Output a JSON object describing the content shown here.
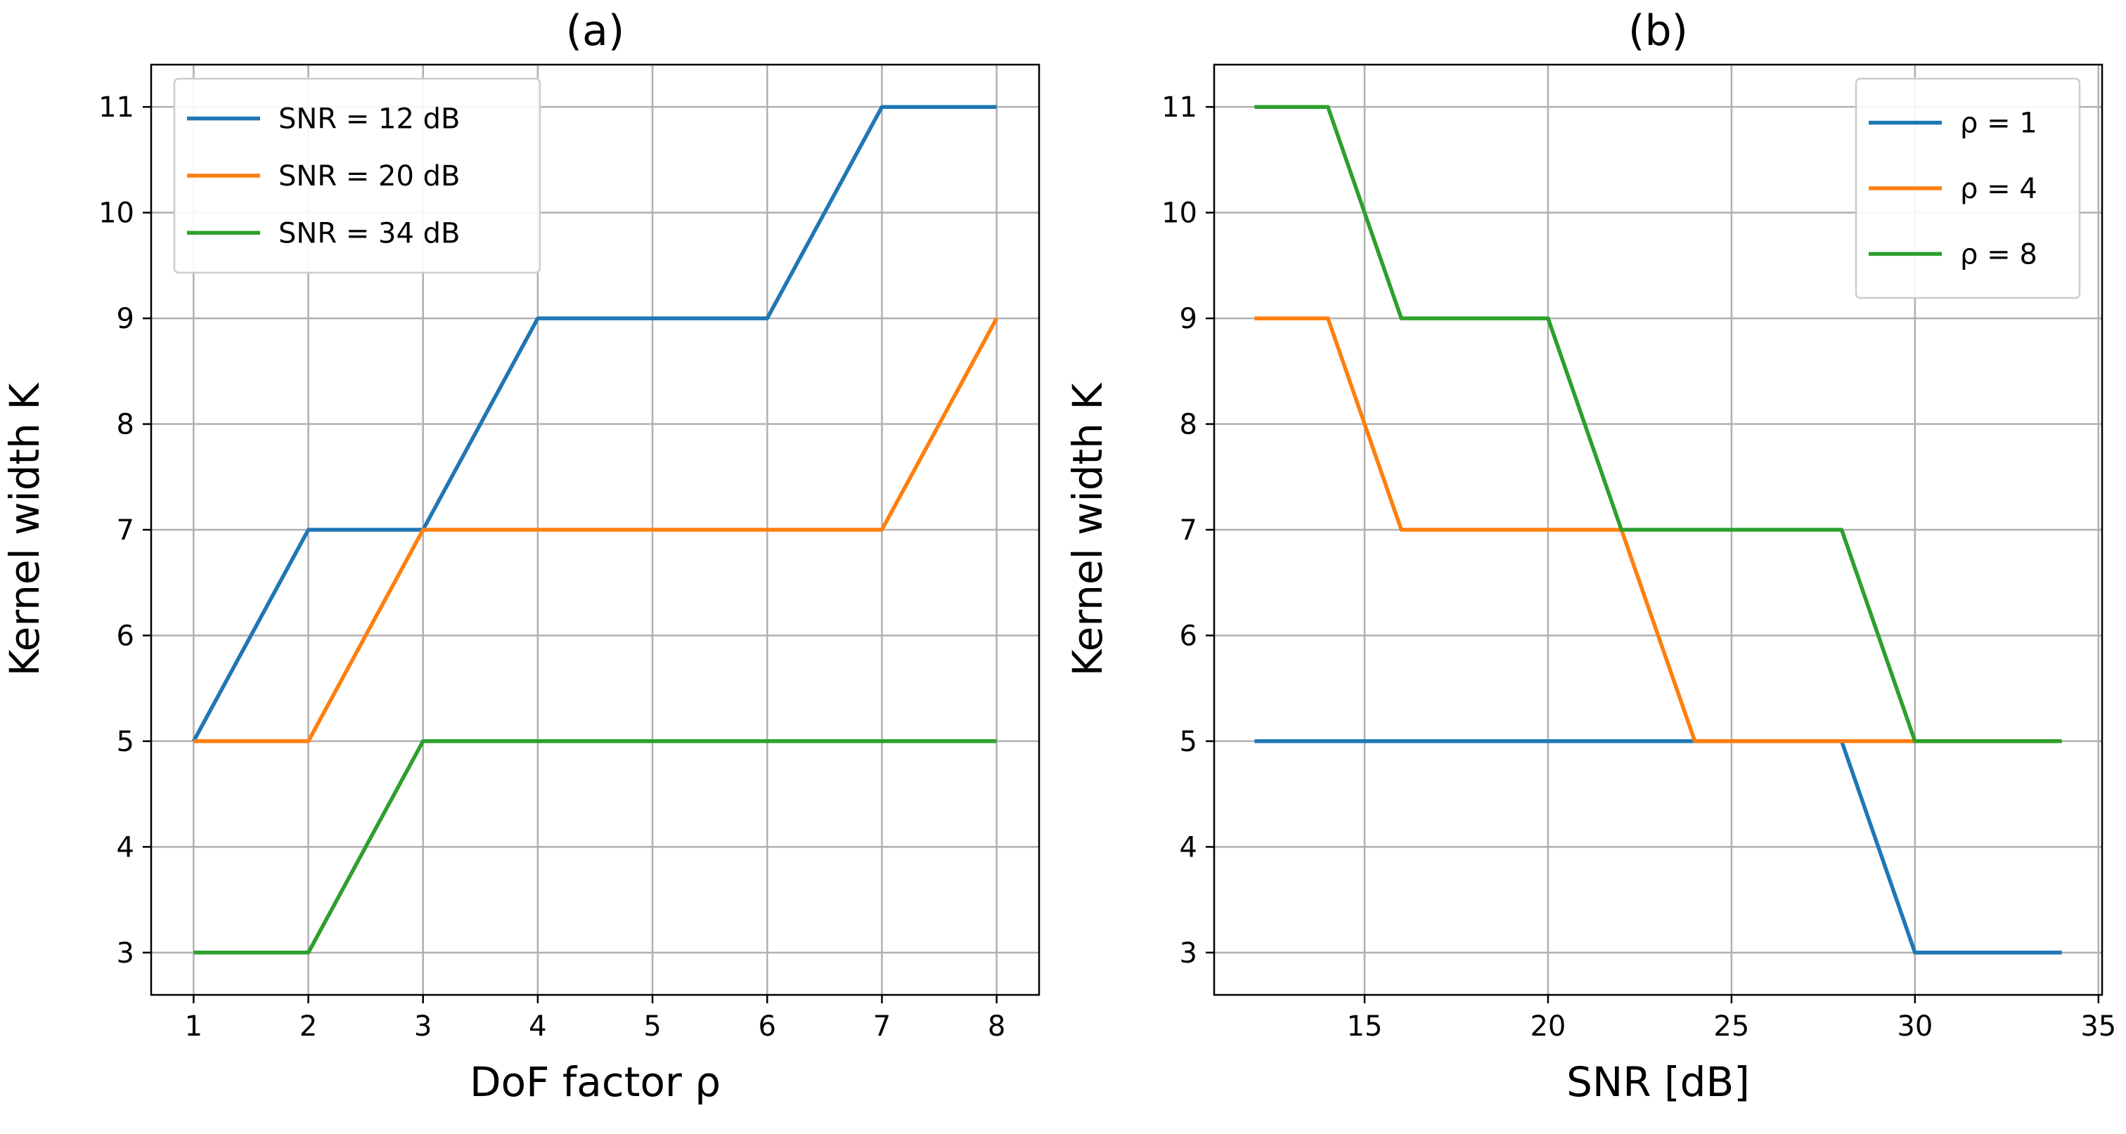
{
  "chart_data": [
    {
      "type": "line",
      "title": "(a)",
      "xlabel": "DoF factor ρ",
      "ylabel": "Kernel width K",
      "xlim": [
        0.63,
        8.37
      ],
      "ylim": [
        2.6,
        11.4
      ],
      "xticks": [
        1,
        2,
        3,
        4,
        5,
        6,
        7,
        8
      ],
      "yticks": [
        3,
        4,
        5,
        6,
        7,
        8,
        9,
        10,
        11
      ],
      "grid": true,
      "legend_position": "top-left",
      "x": [
        1,
        2,
        3,
        4,
        5,
        6,
        7,
        8
      ],
      "series": [
        {
          "name": "SNR = 12 dB",
          "color": "#1f77b4",
          "values": [
            5,
            7,
            7,
            9,
            9,
            9,
            11,
            11
          ]
        },
        {
          "name": "SNR = 20 dB",
          "color": "#ff7f0e",
          "values": [
            5,
            5,
            7,
            7,
            7,
            7,
            7,
            9
          ]
        },
        {
          "name": "SNR = 34 dB",
          "color": "#2ca02c",
          "values": [
            3,
            3,
            5,
            5,
            5,
            5,
            5,
            5
          ]
        }
      ]
    },
    {
      "type": "line",
      "title": "(b)",
      "xlabel": "SNR [dB]",
      "ylabel": "Kernel width K",
      "xlim": [
        10.9,
        35.1
      ],
      "ylim": [
        2.6,
        11.4
      ],
      "xticks": [
        15,
        20,
        25,
        30,
        35
      ],
      "yticks": [
        3,
        4,
        5,
        6,
        7,
        8,
        9,
        10,
        11
      ],
      "grid": true,
      "legend_position": "top-right",
      "x": [
        12,
        14,
        16,
        18,
        20,
        22,
        24,
        26,
        28,
        30,
        32,
        34
      ],
      "series": [
        {
          "name": "ρ = 1",
          "color": "#1f77b4",
          "values": [
            5,
            5,
            5,
            5,
            5,
            5,
            5,
            5,
            5,
            3,
            3,
            3
          ]
        },
        {
          "name": "ρ = 4",
          "color": "#ff7f0e",
          "values": [
            9,
            9,
            7,
            7,
            7,
            7,
            5,
            5,
            5,
            5,
            5,
            5
          ]
        },
        {
          "name": "ρ = 8",
          "color": "#2ca02c",
          "values": [
            11,
            11,
            9,
            9,
            9,
            7,
            7,
            7,
            7,
            5,
            5,
            5
          ]
        }
      ]
    }
  ]
}
